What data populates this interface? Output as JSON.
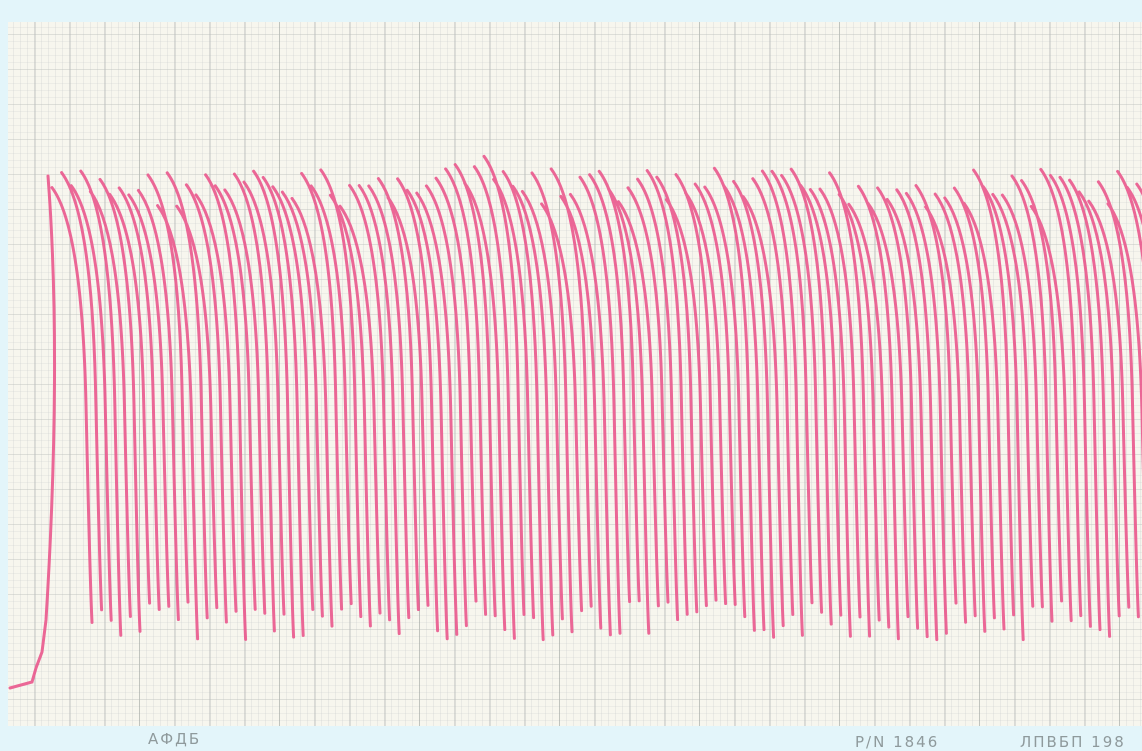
{
  "footer": {
    "left_label": "АФДБ",
    "part_number": "P/N 1846",
    "maker_label": "ЛПВБП 198"
  }
}
